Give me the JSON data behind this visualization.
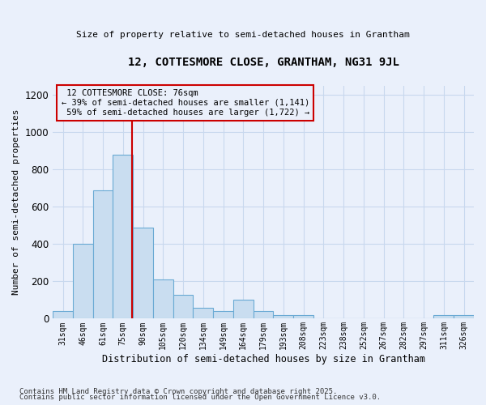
{
  "title1": "12, COTTESMORE CLOSE, GRANTHAM, NG31 9JL",
  "title2": "Size of property relative to semi-detached houses in Grantham",
  "xlabel": "Distribution of semi-detached houses by size in Grantham",
  "ylabel": "Number of semi-detached properties",
  "categories": [
    "31sqm",
    "46sqm",
    "61sqm",
    "75sqm",
    "90sqm",
    "105sqm",
    "120sqm",
    "134sqm",
    "149sqm",
    "164sqm",
    "179sqm",
    "193sqm",
    "208sqm",
    "223sqm",
    "238sqm",
    "252sqm",
    "267sqm",
    "282sqm",
    "297sqm",
    "311sqm",
    "326sqm"
  ],
  "values": [
    40,
    400,
    690,
    880,
    490,
    210,
    130,
    60,
    40,
    100,
    40,
    20,
    20,
    0,
    0,
    0,
    0,
    0,
    0,
    20,
    20
  ],
  "bar_color": "#c9ddf0",
  "bar_edge_color": "#6aaad4",
  "property_label": "12 COTTESMORE CLOSE: 76sqm",
  "pct_smaller": 39,
  "pct_larger": 59,
  "count_smaller": 1141,
  "count_larger": 1722,
  "vline_color": "#cc0000",
  "vline_x": 3.45,
  "annotation_box_color": "#cc0000",
  "ylim": [
    0,
    1250
  ],
  "yticks": [
    0,
    200,
    400,
    600,
    800,
    1000,
    1200
  ],
  "background_color": "#eaf0fb",
  "grid_color": "#c8d8ee",
  "footnote1": "Contains HM Land Registry data © Crown copyright and database right 2025.",
  "footnote2": "Contains public sector information licensed under the Open Government Licence v3.0."
}
